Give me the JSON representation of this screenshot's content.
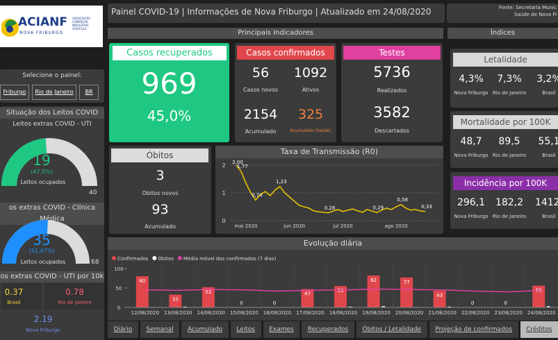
{
  "header": {
    "title": "Painel COVID-19 | Informações de Nova Friburgo | Atualizado em 24/08/2020",
    "source": [
      "Fonte: Secretaria Munic",
      "Saúde de Nova Fr"
    ]
  },
  "logo": {
    "name": "ACIANF",
    "city": "NOVA FRIBURGO",
    "tagline": [
      "ASSOCIAÇÃO",
      "COMERCIAL",
      "INDUSTRIAL",
      "AGRÍCOLA"
    ]
  },
  "selector": {
    "label": "Selecione o painel:",
    "options": [
      "Friburgo",
      "Rio de Janeiro",
      "BR"
    ]
  },
  "beds": {
    "title": "Situação dos Leitos COVID",
    "gauges": [
      {
        "title": "Leitos extras COVID - UTI",
        "value": 19,
        "max": 40,
        "percent": "(47,5%)",
        "caption": "Leitos ocupados",
        "color": "#1ec882"
      },
      {
        "title": "os extras COVID - Clínica Médica",
        "value": 35,
        "max": 68,
        "percent": "(51,47%)",
        "caption": "Leitos ocupados",
        "color": "#1e90ff"
      }
    ],
    "per10k": {
      "title": "os extras COVID - UTI por 10k",
      "items": [
        {
          "value": 0.37,
          "place": "Brasil"
        },
        {
          "value": 0.78,
          "place": "Rio de Janeiro"
        },
        {
          "value": 2.19,
          "place": "Nova Friburgo"
        }
      ]
    }
  },
  "indicators": {
    "title": "Principais Indicadores",
    "recovered": {
      "title": "Casos recuperados",
      "value": 969,
      "share": "45,0%"
    },
    "confirmed": {
      "title": "Casos confirmados",
      "items": [
        {
          "value": 56,
          "label": "Casos novos"
        },
        {
          "value": 1092,
          "label": "Ativos"
        },
        {
          "value": 2154,
          "label": "Acumulado"
        },
        {
          "value": 325,
          "label": "Acumulado (Saúde)"
        }
      ]
    },
    "tests": {
      "title": "Testes",
      "items": [
        {
          "value": 5736,
          "label": "Realizados"
        },
        {
          "value": 3582,
          "label": "Descartados"
        }
      ]
    },
    "deaths": {
      "title": "Óbitos",
      "items": [
        {
          "value": 3,
          "label": "Óbitos novos"
        },
        {
          "value": 93,
          "label": "Acumulado"
        }
      ]
    }
  },
  "indices": {
    "title": "Índices",
    "groups": [
      {
        "title": "Letalidade",
        "items": [
          {
            "value": "4,3%",
            "place": "Nova Friburgo"
          },
          {
            "value": "7,3%",
            "place": "Rio de Janeiro"
          },
          {
            "value": "3,2%",
            "place": "Brasil"
          }
        ]
      },
      {
        "title": "Mortalidade por 100K",
        "items": [
          {
            "value": "48,7",
            "place": "Nova Friburgo"
          },
          {
            "value": "89,5",
            "place": "Rio de Janeiro"
          },
          {
            "value": "55,1",
            "place": "Brasil"
          }
        ]
      },
      {
        "title": "Incidência por 100K",
        "items": [
          {
            "value": "296,1",
            "place": "Nova Friburgo"
          },
          {
            "value": "182,2",
            "place": "Rio de Janeiro"
          },
          {
            "value": "1412,",
            "place": "Brasil"
          }
        ]
      }
    ]
  },
  "chart_data": [
    {
      "type": "line",
      "title": "Taxa de Transmissão (R0)",
      "color": "#e6c200",
      "grid": true,
      "ylim": [
        0,
        2.2
      ],
      "yticks": [
        0,
        1,
        2
      ],
      "categories": [
        null,
        null,
        "mai 2020",
        null,
        null,
        null,
        null,
        null,
        null,
        null,
        null,
        null,
        "jun 2020",
        null,
        null,
        null,
        null,
        null,
        null,
        null,
        null,
        null,
        "jul 2020",
        null,
        null,
        null,
        null,
        null,
        null,
        null,
        null,
        null,
        null,
        "ago 2020",
        null,
        null,
        null,
        null,
        null,
        null
      ],
      "values": [
        2.0,
        1.77,
        1.35,
        1.0,
        0.74,
        0.95,
        1.05,
        0.9,
        1.1,
        1.23,
        1.0,
        0.85,
        0.7,
        0.55,
        0.5,
        0.45,
        0.35,
        0.32,
        0.3,
        0.28,
        0.35,
        0.4,
        0.33,
        0.38,
        0.42,
        0.36,
        0.3,
        0.4,
        0.35,
        0.29,
        0.38,
        0.45,
        0.4,
        0.5,
        0.58,
        0.45,
        0.38,
        0.4,
        0.35,
        0.33
      ],
      "value_labels": [
        "2,00",
        "1,77",
        null,
        null,
        "0,74",
        null,
        null,
        null,
        null,
        "1,23",
        null,
        null,
        null,
        null,
        null,
        null,
        null,
        null,
        null,
        "0,28",
        null,
        null,
        null,
        null,
        null,
        null,
        null,
        null,
        null,
        "0,29",
        null,
        null,
        null,
        null,
        "0,58",
        null,
        null,
        null,
        null,
        "0,33"
      ]
    },
    {
      "type": "bar",
      "title": "Evolução diária",
      "ylim": [
        0,
        100
      ],
      "yticks": [
        0,
        50,
        100
      ],
      "categories": [
        "12/08/2020",
        "13/08/2020",
        "14/08/2020",
        "15/08/2020",
        "16/08/2020",
        "17/08/2020",
        "18/08/2020",
        "19/08/2020",
        "20/08/2020",
        "21/08/2020",
        "22/08/2020",
        "23/08/2020",
        "24/08/2020"
      ],
      "series": [
        {
          "name": "Confirmados",
          "color": "#e0474c",
          "values": [
            80,
            33,
            52,
            0,
            0,
            47,
            55,
            82,
            77,
            43,
            0,
            0,
            56
          ]
        },
        {
          "name": "Óbitos",
          "color": "#ffffff",
          "values": [
            1,
            2,
            1,
            0,
            0,
            1,
            2,
            3,
            1,
            2,
            0,
            0,
            3
          ]
        },
        {
          "name": "Média móvel dos confirmados (7 dias)",
          "color": "#e040a0",
          "type": "line",
          "values": [
            45,
            44,
            46,
            45,
            42,
            44,
            45,
            47,
            46,
            45,
            42,
            40,
            44
          ]
        }
      ]
    }
  ],
  "tabs": [
    "Diário",
    "Semanal",
    "Acumulado",
    "Leitos",
    "Exames",
    "Recuperados",
    "Óbitos / Letalidade",
    "Projeção de confirmados",
    "Créditos"
  ]
}
